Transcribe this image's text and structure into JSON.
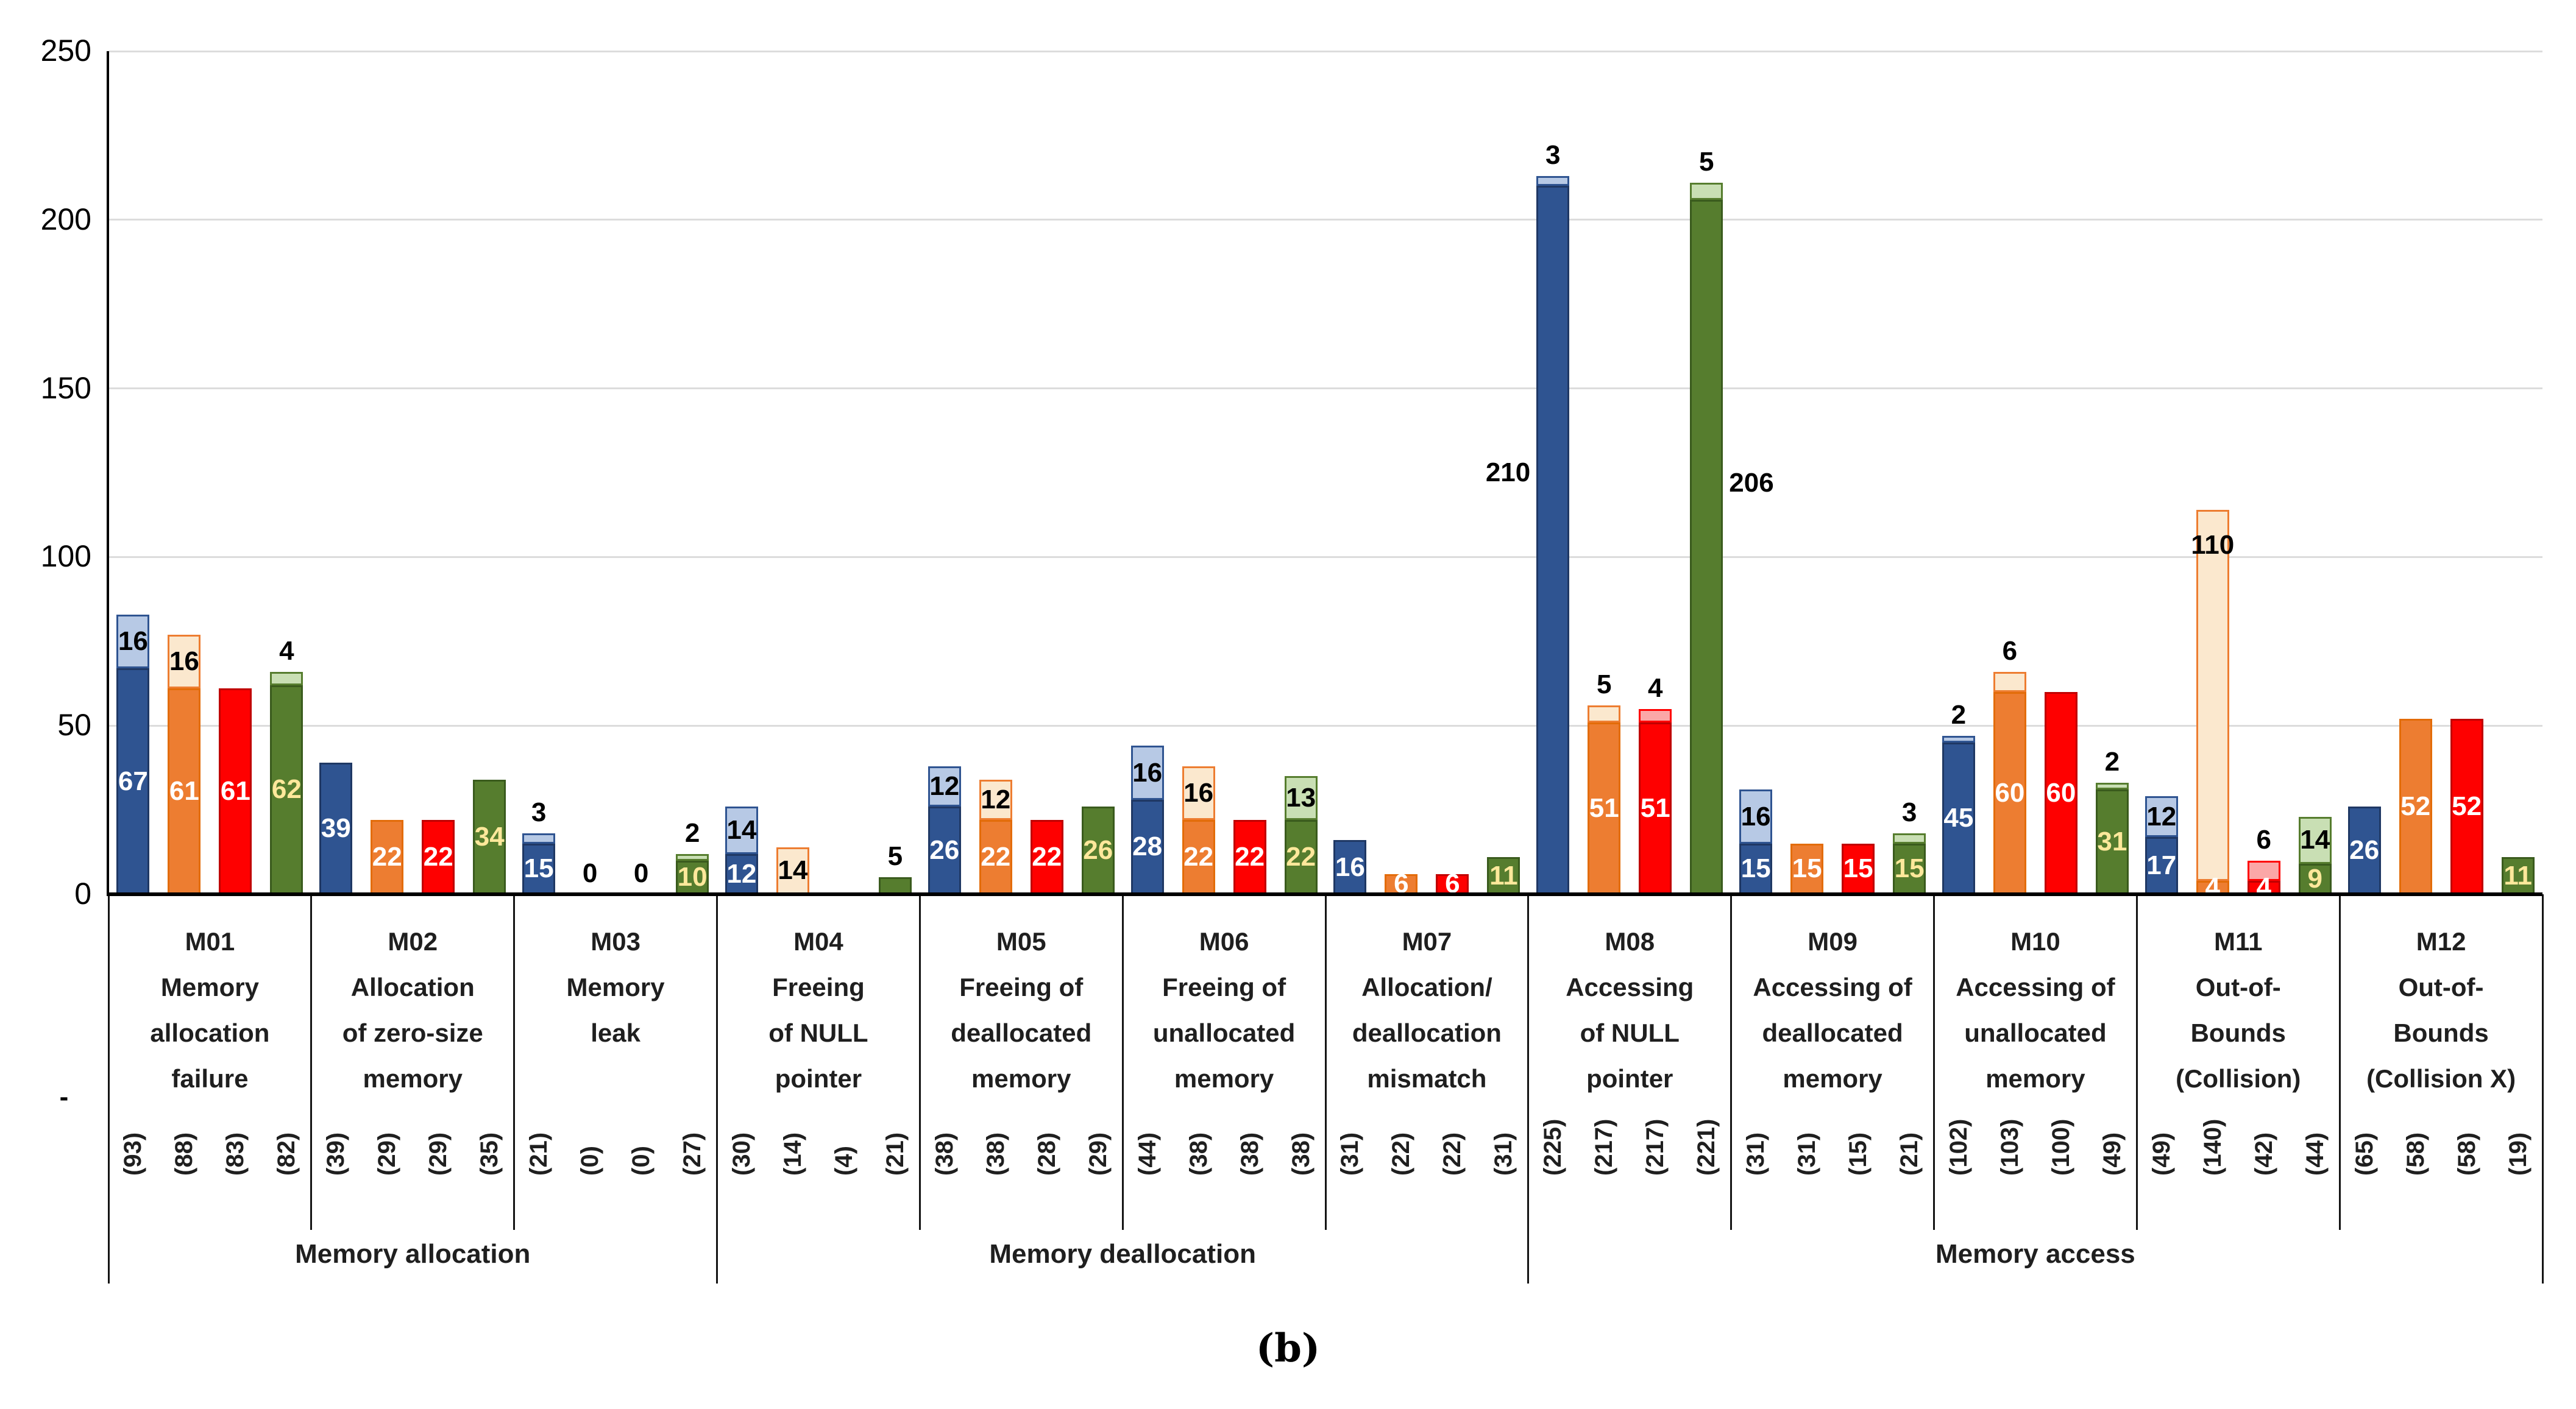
{
  "caption": "(b)",
  "left_dash": "-",
  "chart_data": {
    "type": "bar",
    "stacked": true,
    "title": "",
    "xlabel": "",
    "ylabel": "",
    "ylim": [
      0,
      250
    ],
    "yticks": [
      0,
      50,
      100,
      150,
      200,
      250
    ],
    "grid": true,
    "legend_position": "none",
    "series_names": [
      "series-blue",
      "series-orange",
      "series-red",
      "series-green"
    ],
    "series_styles": [
      {
        "name": "blue",
        "fill": "#2F5491",
        "border": "#1F3864",
        "light_fill": "#B7C9E5",
        "light_border": "#2F5491",
        "label_color": "#FFFFFF"
      },
      {
        "name": "orange",
        "fill": "#ED7D31",
        "border": "#E36C09",
        "light_fill": "#FBE8CE",
        "light_border": "#ED7D31",
        "label_color": "#FFFFFF"
      },
      {
        "name": "red",
        "fill": "#FE0000",
        "border": "#C00000",
        "light_fill": "#FBA7A7",
        "light_border": "#FE0000",
        "label_color": "#FFFFFF"
      },
      {
        "name": "green",
        "fill": "#567D2E",
        "border": "#3A5B1D",
        "light_fill": "#C9DFB4",
        "light_border": "#567D2E",
        "label_color": "#FFE89B"
      }
    ],
    "group_labels": [
      {
        "label": "Memory allocation",
        "from": 0,
        "to": 2
      },
      {
        "label": "Memory deallocation",
        "from": 3,
        "to": 6
      },
      {
        "label": "Memory access",
        "from": 7,
        "to": 11
      }
    ],
    "categories": [
      {
        "id": "M01",
        "label_lines": [
          "M01",
          "Memory",
          "allocation",
          "failure"
        ],
        "bars": [
          {
            "solid": 67,
            "light": 16,
            "tick": "(93)",
            "labels": {
              "solid": "67",
              "light": "16"
            }
          },
          {
            "solid": 61,
            "light": 16,
            "tick": "(88)",
            "labels": {
              "solid": "61",
              "light": "16"
            }
          },
          {
            "solid": 61,
            "light": 0,
            "tick": "(83)",
            "labels": {
              "solid": "61"
            }
          },
          {
            "solid": 62,
            "light": 4,
            "tick": "(82)",
            "labels": {
              "solid": "62",
              "above": "4"
            }
          }
        ]
      },
      {
        "id": "M02",
        "label_lines": [
          "M02",
          "Allocation",
          "of zero-size",
          "memory"
        ],
        "bars": [
          {
            "solid": 39,
            "light": 0,
            "tick": "(39)",
            "labels": {
              "solid": "39"
            }
          },
          {
            "solid": 22,
            "light": 0,
            "tick": "(29)",
            "labels": {
              "solid": "22"
            }
          },
          {
            "solid": 22,
            "light": 0,
            "tick": "(29)",
            "labels": {
              "solid": "22"
            }
          },
          {
            "solid": 34,
            "light": 0,
            "tick": "(35)",
            "labels": {
              "solid": "34"
            }
          }
        ]
      },
      {
        "id": "M03",
        "label_lines": [
          "M03",
          "Memory",
          "leak"
        ],
        "bars": [
          {
            "solid": 15,
            "light": 3,
            "tick": "(21)",
            "labels": {
              "solid": "15",
              "above": "3"
            }
          },
          {
            "solid": 0,
            "light": 0,
            "tick": "(0)",
            "labels": {
              "above": "0"
            }
          },
          {
            "solid": 0,
            "light": 0,
            "tick": "(0)",
            "labels": {
              "above": "0"
            }
          },
          {
            "solid": 10,
            "light": 2,
            "tick": "(27)",
            "labels": {
              "solid": "10",
              "above": "2"
            }
          }
        ]
      },
      {
        "id": "M04",
        "label_lines": [
          "M04",
          "Freeing",
          "of NULL",
          "pointer"
        ],
        "bars": [
          {
            "solid": 12,
            "light": 14,
            "tick": "(30)",
            "labels": {
              "solid": "12",
              "light": "14"
            }
          },
          {
            "solid": 0,
            "light": 14,
            "tick": "(14)",
            "labels": {
              "light": "14"
            }
          },
          {
            "solid": 0,
            "light": 0,
            "tick": "(4)",
            "labels": {}
          },
          {
            "solid": 5,
            "light": 0,
            "tick": "(21)",
            "labels": {
              "above": "5"
            }
          }
        ]
      },
      {
        "id": "M05",
        "label_lines": [
          "M05",
          "Freeing of",
          "deallocated",
          "memory"
        ],
        "bars": [
          {
            "solid": 26,
            "light": 12,
            "tick": "(38)",
            "labels": {
              "solid": "26",
              "light": "12"
            }
          },
          {
            "solid": 22,
            "light": 12,
            "tick": "(38)",
            "labels": {
              "solid": "22",
              "light": "12"
            }
          },
          {
            "solid": 22,
            "light": 0,
            "tick": "(28)",
            "labels": {
              "solid": "22"
            }
          },
          {
            "solid": 26,
            "light": 0,
            "tick": "(29)",
            "labels": {
              "solid": "26"
            }
          }
        ]
      },
      {
        "id": "M06",
        "label_lines": [
          "M06",
          "Freeing of",
          "unallocated",
          "memory"
        ],
        "bars": [
          {
            "solid": 28,
            "light": 16,
            "tick": "(44)",
            "labels": {
              "solid": "28",
              "light": "16"
            }
          },
          {
            "solid": 22,
            "light": 16,
            "tick": "(38)",
            "labels": {
              "solid": "22",
              "light": "16"
            }
          },
          {
            "solid": 22,
            "light": 0,
            "tick": "(38)",
            "labels": {
              "solid": "22"
            }
          },
          {
            "solid": 22,
            "light": 13,
            "tick": "(38)",
            "labels": {
              "solid": "22",
              "light": "13"
            }
          }
        ]
      },
      {
        "id": "M07",
        "label_lines": [
          "M07",
          "Allocation/",
          "deallocation",
          "mismatch"
        ],
        "bars": [
          {
            "solid": 16,
            "light": 0,
            "tick": "(31)",
            "labels": {
              "solid": "16"
            }
          },
          {
            "solid": 6,
            "light": 0,
            "tick": "(22)",
            "labels": {
              "solid": "6"
            }
          },
          {
            "solid": 6,
            "light": 0,
            "tick": "(22)",
            "labels": {
              "solid": "6"
            }
          },
          {
            "solid": 11,
            "light": 0,
            "tick": "(31)",
            "labels": {
              "solid": "11"
            }
          }
        ]
      },
      {
        "id": "M08",
        "label_lines": [
          "M08",
          "Accessing",
          "of NULL",
          "pointer"
        ],
        "bars": [
          {
            "solid": 210,
            "light": 3,
            "tick": "(225)",
            "labels": {
              "above": "3",
              "outside_left": "210"
            }
          },
          {
            "solid": 51,
            "light": 5,
            "tick": "(217)",
            "labels": {
              "solid": "51",
              "above": "5"
            }
          },
          {
            "solid": 51,
            "light": 4,
            "tick": "(217)",
            "labels": {
              "solid": "51",
              "above": "4"
            }
          },
          {
            "solid": 206,
            "light": 5,
            "tick": "(221)",
            "labels": {
              "above": "5",
              "outside_right": "206"
            }
          }
        ]
      },
      {
        "id": "M09",
        "label_lines": [
          "M09",
          "Accessing of",
          "deallocated",
          "memory"
        ],
        "bars": [
          {
            "solid": 15,
            "light": 16,
            "tick": "(31)",
            "labels": {
              "solid": "15",
              "light": "16"
            }
          },
          {
            "solid": 15,
            "light": 0,
            "tick": "(31)",
            "labels": {
              "solid": "15"
            }
          },
          {
            "solid": 15,
            "light": 0,
            "tick": "(15)",
            "labels": {
              "solid": "15"
            }
          },
          {
            "solid": 15,
            "light": 3,
            "tick": "(21)",
            "labels": {
              "solid": "15",
              "above": "3"
            }
          }
        ]
      },
      {
        "id": "M10",
        "label_lines": [
          "M10",
          "Accessing of",
          "unallocated",
          "memory"
        ],
        "bars": [
          {
            "solid": 45,
            "light": 2,
            "tick": "(102)",
            "labels": {
              "solid": "45",
              "above": "2"
            }
          },
          {
            "solid": 60,
            "light": 6,
            "tick": "(103)",
            "labels": {
              "solid": "60",
              "above": "6"
            }
          },
          {
            "solid": 60,
            "light": 0,
            "tick": "(100)",
            "labels": {
              "solid": "60"
            }
          },
          {
            "solid": 31,
            "light": 2,
            "tick": "(49)",
            "labels": {
              "solid": "31",
              "above": "2"
            }
          }
        ]
      },
      {
        "id": "M11",
        "label_lines": [
          "M11",
          "Out-of-",
          "Bounds",
          "(Collision)"
        ],
        "bars": [
          {
            "solid": 17,
            "light": 12,
            "tick": "(49)",
            "labels": {
              "solid": "17",
              "light": "12"
            }
          },
          {
            "solid": 4,
            "light": 110,
            "tick": "(140)",
            "labels": {
              "solid": "4",
              "light": "110",
              "light_pos": "top"
            }
          },
          {
            "solid": 4,
            "light": 6,
            "tick": "(42)",
            "labels": {
              "solid": "4",
              "above": "6"
            }
          },
          {
            "solid": 9,
            "light": 14,
            "tick": "(44)",
            "labels": {
              "solid": "9",
              "light": "14"
            }
          }
        ]
      },
      {
        "id": "M12",
        "label_lines": [
          "M12",
          "Out-of-",
          "Bounds",
          "(Collision X)"
        ],
        "bars": [
          {
            "solid": 26,
            "light": 0,
            "tick": "(65)",
            "labels": {
              "solid": "26"
            }
          },
          {
            "solid": 52,
            "light": 0,
            "tick": "(58)",
            "labels": {
              "solid": "52"
            }
          },
          {
            "solid": 52,
            "light": 0,
            "tick": "(58)",
            "labels": {
              "solid": "52"
            }
          },
          {
            "solid": 11,
            "light": 0,
            "tick": "(19)",
            "labels": {
              "solid": "11"
            }
          }
        ]
      }
    ]
  }
}
